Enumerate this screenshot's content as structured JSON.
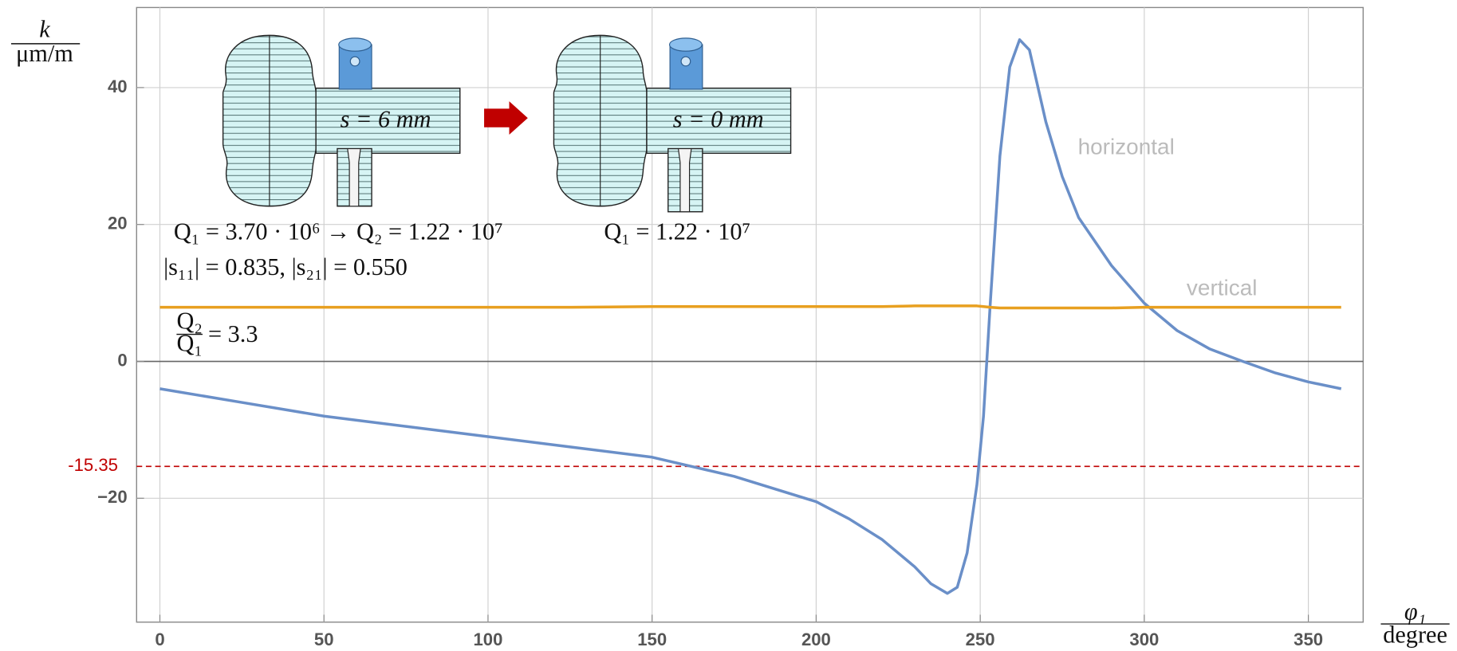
{
  "chart_data": {
    "type": "line",
    "x_label": {
      "numerator": "φ₁",
      "denominator": "degree"
    },
    "y_label": {
      "numerator": "k",
      "denominator": "μm/m"
    },
    "x": [
      0,
      25,
      50,
      75,
      100,
      125,
      150,
      175,
      200,
      210,
      220,
      230,
      235,
      240,
      243,
      246,
      249,
      251,
      253,
      256,
      259,
      262,
      265,
      270,
      275,
      280,
      290,
      300,
      310,
      320,
      330,
      340,
      350,
      360
    ],
    "series": [
      {
        "name": "horizontal",
        "color": "#6a8fc8",
        "values": [
          -4,
          -6,
          -8,
          -9.5,
          -11,
          -12.5,
          -14,
          -16.8,
          -20.5,
          -23,
          -26,
          -30,
          -32.5,
          -33.9,
          -33,
          -28,
          -18,
          -8,
          8,
          30,
          43,
          47,
          45.5,
          35,
          27,
          21,
          14,
          8.5,
          4.5,
          1.8,
          0,
          -1.7,
          -3,
          -4
        ]
      },
      {
        "name": "vertical",
        "color": "#e8a020",
        "values": [
          7.9,
          7.9,
          7.9,
          7.9,
          7.9,
          7.9,
          8.0,
          8.0,
          8.0,
          8.0,
          8.0,
          8.1,
          8.1,
          8.1,
          8.1,
          8.1,
          8.1,
          8.0,
          7.9,
          7.8,
          7.8,
          7.8,
          7.8,
          7.8,
          7.8,
          7.8,
          7.8,
          7.9,
          7.9,
          7.9,
          7.9,
          7.9,
          7.9,
          7.9
        ]
      }
    ],
    "xlim": [
      -7.1,
      366.7
    ],
    "ylim": [
      -38.1,
      51.7
    ],
    "xticks": [
      0,
      50,
      100,
      150,
      200,
      250,
      300,
      350
    ],
    "yticks": [
      {
        "value": -20,
        "label": "−20"
      },
      0,
      20,
      40
    ],
    "grid": true,
    "hline": {
      "value": -15.35,
      "color": "#c00000"
    },
    "annotations": {
      "left_inset": "s = 6 mm",
      "right_inset": "s = 0 mm",
      "q_line": "Q₁ = 3.70 · 10⁶ → Q₂ = 1.22 · 10⁷",
      "s_line": "|s₁₁| = 0.835,  |s₂₁| = 0.550",
      "q_right": "Q₁ = 1.22 · 10⁷",
      "ratio": {
        "numerator": "Q₂",
        "denominator": "Q₁",
        "rest": "= 3.3"
      }
    }
  }
}
